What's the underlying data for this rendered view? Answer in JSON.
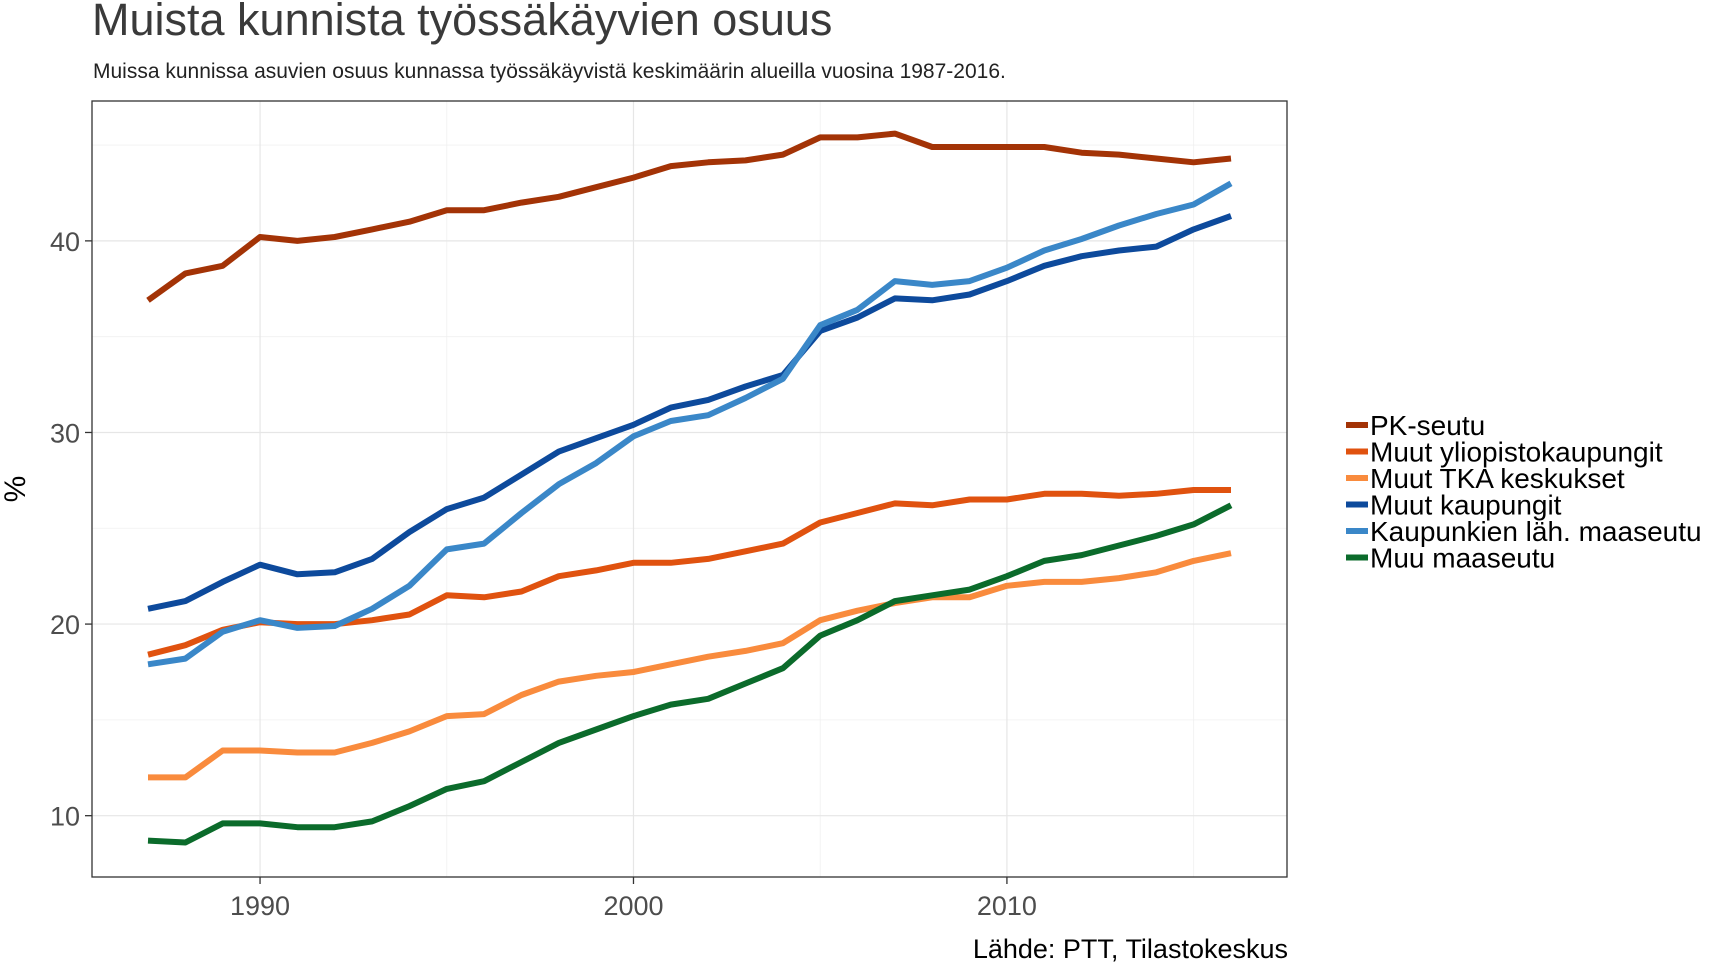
{
  "title": "Muista kunnista työssäkäyvien osuus",
  "subtitle": "Muissa kunnissa asuvien osuus kunnassa työssäkäyvistä keskimäärin alueilla vuosina 1987-2016.",
  "caption": "Lähde: PTT, Tilastokeskus",
  "chart_data": {
    "type": "line",
    "xlabel": "",
    "ylabel": "%",
    "x_ticks": [
      1990,
      2000,
      2010
    ],
    "y_ticks": [
      10,
      20,
      30,
      40
    ],
    "xlim": [
      1985.5,
      2017.5
    ],
    "ylim": [
      6.8,
      47.3
    ],
    "grid": true,
    "legend_position": "right",
    "x": [
      1987,
      1988,
      1989,
      1990,
      1991,
      1992,
      1993,
      1994,
      1995,
      1996,
      1997,
      1998,
      1999,
      2000,
      2001,
      2002,
      2003,
      2004,
      2005,
      2006,
      2007,
      2008,
      2009,
      2010,
      2011,
      2012,
      2013,
      2014,
      2015,
      2016
    ],
    "series": [
      {
        "name": "PK-seutu",
        "color": "#a33306",
        "values": [
          36.9,
          38.3,
          38.7,
          40.2,
          40.0,
          40.2,
          40.6,
          41.0,
          41.6,
          41.6,
          42.0,
          42.3,
          42.8,
          43.3,
          43.9,
          44.1,
          44.2,
          44.5,
          45.4,
          45.4,
          45.6,
          44.9,
          44.9,
          44.9,
          44.9,
          44.6,
          44.5,
          44.3,
          44.1,
          44.3
        ]
      },
      {
        "name": "Muut yliopistokaupungit",
        "color": "#e0520f",
        "values": [
          18.4,
          18.9,
          19.7,
          20.1,
          20.0,
          20.0,
          20.2,
          20.5,
          21.5,
          21.4,
          21.7,
          22.5,
          22.8,
          23.2,
          23.2,
          23.4,
          23.8,
          24.2,
          25.3,
          25.8,
          26.3,
          26.2,
          26.5,
          26.5,
          26.8,
          26.8,
          26.7,
          26.8,
          27.0,
          27.0
        ]
      },
      {
        "name": "Muut TKA keskukset",
        "color": "#f98b3d",
        "values": [
          12.0,
          12.0,
          13.4,
          13.4,
          13.3,
          13.3,
          13.8,
          14.4,
          15.2,
          15.3,
          16.3,
          17.0,
          17.3,
          17.5,
          17.9,
          18.3,
          18.6,
          19.0,
          20.2,
          20.7,
          21.1,
          21.4,
          21.4,
          22.0,
          22.2,
          22.2,
          22.4,
          22.7,
          23.3,
          23.7
        ]
      },
      {
        "name": "Muut kaupungit",
        "color": "#0d4a9c",
        "values": [
          20.8,
          21.2,
          22.2,
          23.1,
          22.6,
          22.7,
          23.4,
          24.8,
          26.0,
          26.6,
          27.8,
          29.0,
          29.7,
          30.4,
          31.3,
          31.7,
          32.4,
          33.0,
          35.3,
          36.0,
          37.0,
          36.9,
          37.2,
          37.9,
          38.7,
          39.2,
          39.5,
          39.7,
          40.6,
          41.3
        ]
      },
      {
        "name": "Kaupunkien läh. maaseutu",
        "color": "#3a87c8",
        "values": [
          17.9,
          18.2,
          19.6,
          20.2,
          19.8,
          19.9,
          20.8,
          22.0,
          23.9,
          24.2,
          25.8,
          27.3,
          28.4,
          29.8,
          30.6,
          30.9,
          31.8,
          32.8,
          35.6,
          36.4,
          37.9,
          37.7,
          37.9,
          38.6,
          39.5,
          40.1,
          40.8,
          41.4,
          41.9,
          43.0
        ]
      },
      {
        "name": "Muu maaseutu",
        "color": "#0b6b2b",
        "values": [
          8.7,
          8.6,
          9.6,
          9.6,
          9.4,
          9.4,
          9.7,
          10.5,
          11.4,
          11.8,
          12.8,
          13.8,
          14.5,
          15.2,
          15.8,
          16.1,
          16.9,
          17.7,
          19.4,
          20.2,
          21.2,
          21.5,
          21.8,
          22.5,
          23.3,
          23.6,
          24.1,
          24.6,
          25.2,
          26.2
        ]
      }
    ]
  }
}
